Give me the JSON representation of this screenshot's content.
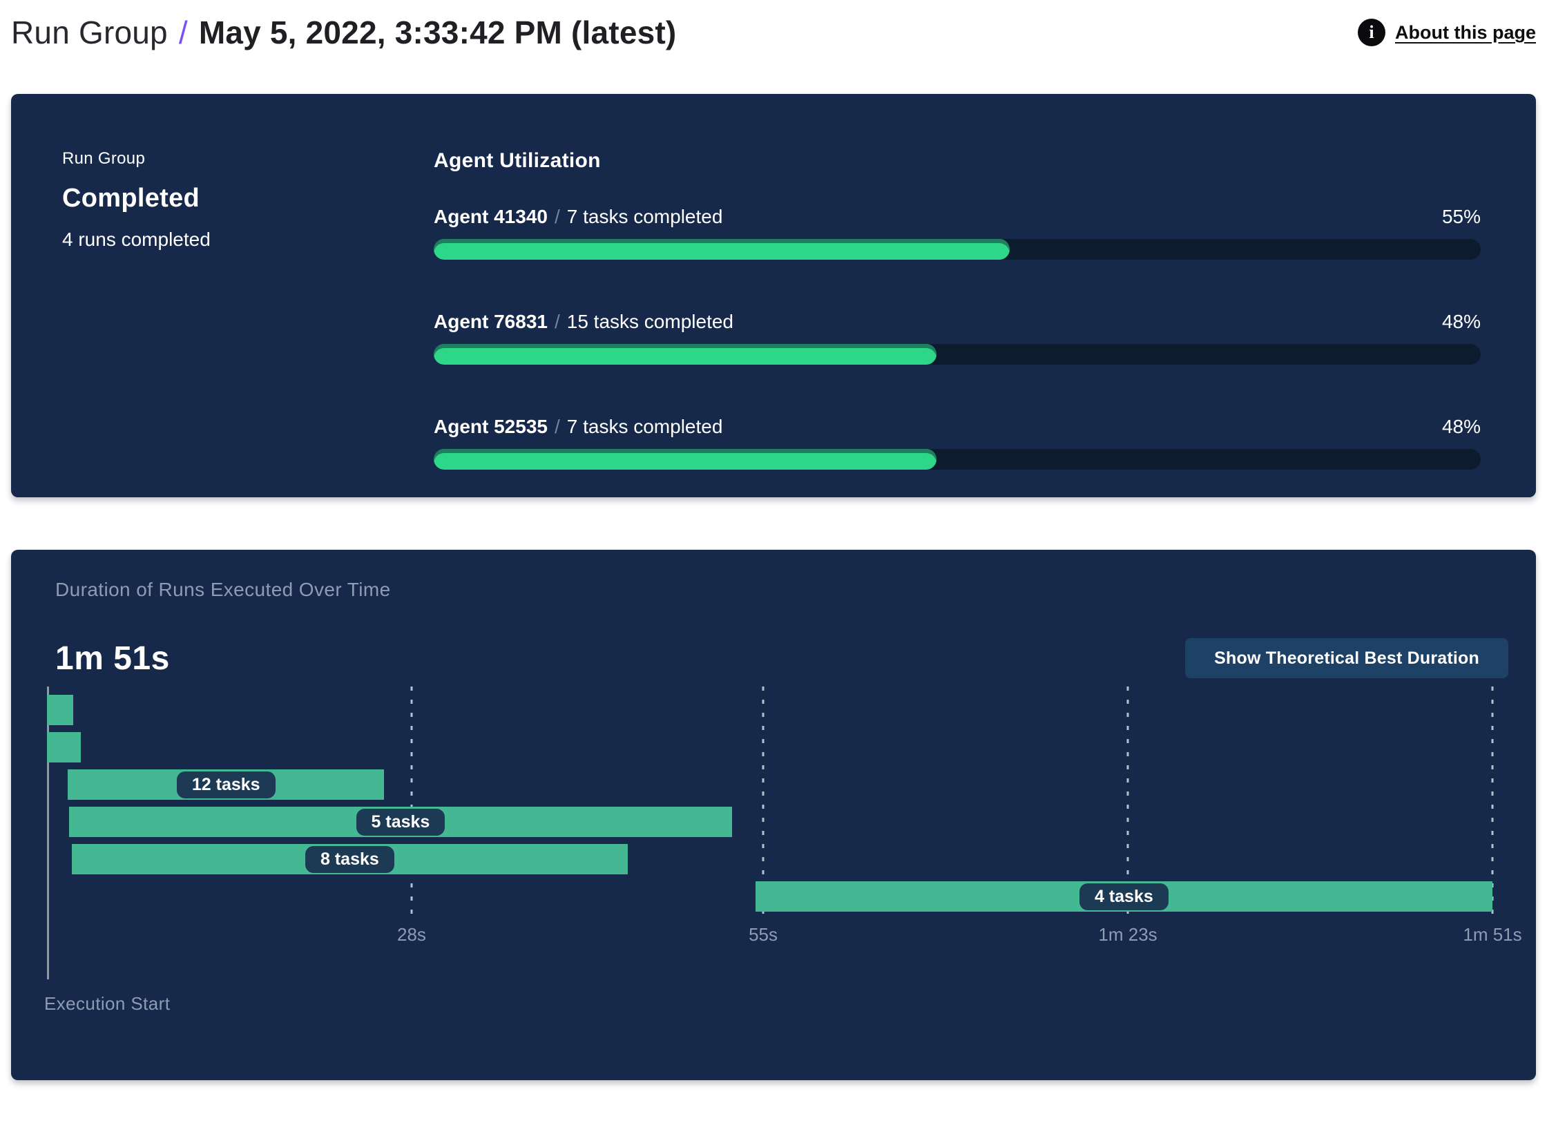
{
  "header": {
    "breadcrumb_root": "Run Group",
    "breadcrumb_separator": "/",
    "title": "May 5, 2022, 3:33:42 PM (latest)",
    "about_label": "About this page",
    "info_icon_glyph": "i",
    "accent_color": "#7a52f4"
  },
  "summary_panel": {
    "label": "Run Group",
    "status": "Completed",
    "runs_completed": "4 runs completed"
  },
  "agent_utilization": {
    "title": "Agent Utilization",
    "separator": "/",
    "agents": [
      {
        "name": "Agent 41340",
        "tasks": "7 tasks completed",
        "percent": 55,
        "percent_label": "55%"
      },
      {
        "name": "Agent 76831",
        "tasks": "15 tasks completed",
        "percent": 48,
        "percent_label": "48%"
      },
      {
        "name": "Agent 52535",
        "tasks": "7 tasks completed",
        "percent": 48,
        "percent_label": "48%"
      }
    ]
  },
  "duration_panel": {
    "title": "Duration of Runs Executed Over Time",
    "total_duration": "1m 51s",
    "button_label": "Show Theoretical Best Duration",
    "execution_start_label": "Execution Start"
  },
  "chart_data": {
    "type": "gantt",
    "title": "Duration of Runs Executed Over Time",
    "total_duration_s": 111,
    "x_axis": {
      "min_s": 0,
      "max_s": 111,
      "gridlines": "dashed-vertical"
    },
    "x_ticks": [
      {
        "s": 28,
        "label": "28s"
      },
      {
        "s": 55,
        "label": "55s"
      },
      {
        "s": 83,
        "label": "1m 23s"
      },
      {
        "s": 111,
        "label": "1m 51s"
      }
    ],
    "bars": [
      {
        "start_s": 0,
        "end_s": 2,
        "label": ""
      },
      {
        "start_s": 0,
        "end_s": 2.6,
        "label": ""
      },
      {
        "start_s": 1.6,
        "end_s": 25.9,
        "label": "12 tasks"
      },
      {
        "start_s": 1.7,
        "end_s": 52.6,
        "label": "5 tasks"
      },
      {
        "start_s": 1.9,
        "end_s": 44.6,
        "label": "8 tasks"
      },
      {
        "start_s": 54.4,
        "end_s": 111,
        "label": "4 tasks"
      }
    ],
    "colors": {
      "panel_bg": "#16294a",
      "bar": "#44b893",
      "label_pill": "#1d3a54",
      "gridline": "#b6c0ce",
      "progress_fill": "#2ed687",
      "progress_track": "#0d1b2f",
      "muted_text": "#8e9bb3"
    }
  }
}
